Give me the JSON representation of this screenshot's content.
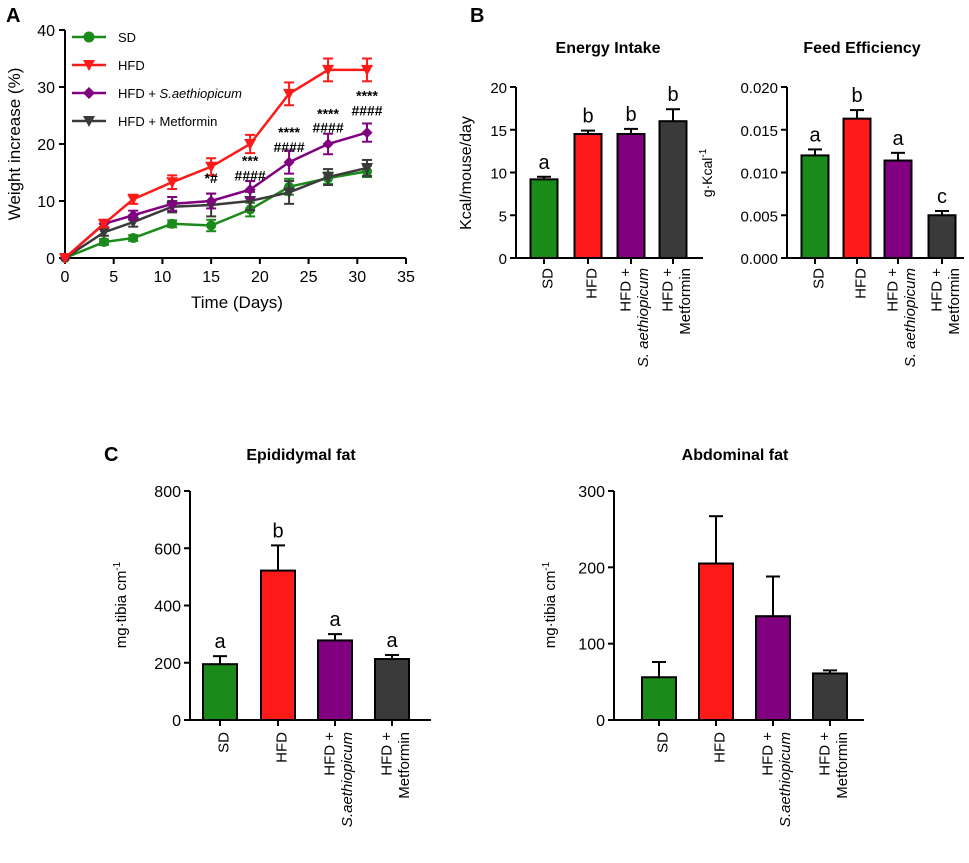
{
  "panels": {
    "A": {
      "letter": "A",
      "chart_data": {
        "type": "line",
        "xlabel": "Time (Days)",
        "ylabel": "Weight increase (%)",
        "xlim": [
          0,
          35
        ],
        "ylim": [
          0,
          40
        ],
        "xticks": [
          0,
          5,
          10,
          15,
          20,
          25,
          30,
          35
        ],
        "yticks": [
          0,
          10,
          20,
          30,
          40
        ],
        "x": [
          0,
          4,
          7,
          11,
          15,
          19,
          23,
          27,
          31
        ],
        "series": [
          {
            "key": "sd",
            "name": "SD",
            "color": "#1a8a1a",
            "marker": "circle",
            "values": [
              0,
              2.8,
              3.5,
              6.0,
              5.7,
              8.5,
              12.5,
              14.0,
              15.2
            ],
            "errors": [
              0,
              0.5,
              0.5,
              0.6,
              1.0,
              1.2,
              1.4,
              1.0,
              1.0
            ]
          },
          {
            "key": "hfd",
            "name": "HFD",
            "color": "#ff1a1a",
            "marker": "triangle-down",
            "values": [
              0,
              6.0,
              10.3,
              13.3,
              16.0,
              20.0,
              28.8,
              33.0,
              33.0
            ],
            "errors": [
              0,
              0.6,
              0.8,
              1.2,
              1.5,
              1.6,
              2.0,
              2.0,
              2.0
            ]
          },
          {
            "key": "sae",
            "name_prefix": "HFD + ",
            "name_italic": "S.aethiopicum",
            "color": "#800080",
            "marker": "diamond",
            "values": [
              0,
              6.0,
              7.5,
              9.5,
              10.0,
              12.0,
              16.8,
              20.0,
              22.0
            ],
            "errors": [
              0,
              0.6,
              0.8,
              1.2,
              1.3,
              1.5,
              2.0,
              1.8,
              1.6
            ]
          },
          {
            "key": "met",
            "name": "HFD + Metformin",
            "color": "#3a3a3a",
            "marker": "triangle-down",
            "values": [
              0,
              4.5,
              6.3,
              9.0,
              9.3,
              10.0,
              11.5,
              14.2,
              15.8
            ],
            "errors": [
              0,
              0.6,
              0.8,
              1.0,
              2.0,
              1.6,
              2.0,
              1.4,
              1.4
            ]
          }
        ],
        "annotations": [
          {
            "x": 15,
            "y": 13.2,
            "text": "*#"
          },
          {
            "x": 19,
            "y": 16.2,
            "text": "***"
          },
          {
            "x": 19,
            "y": 13.6,
            "text": "####"
          },
          {
            "x": 23,
            "y": 21.2,
            "text": "****"
          },
          {
            "x": 23,
            "y": 18.6,
            "text": "####"
          },
          {
            "x": 27,
            "y": 24.5,
            "text": "****"
          },
          {
            "x": 27,
            "y": 22.0,
            "text": "####"
          },
          {
            "x": 31,
            "y": 27.6,
            "text": "****"
          },
          {
            "x": 31,
            "y": 25.0,
            "text": "####"
          }
        ]
      }
    },
    "B": {
      "letter": "B",
      "charts": [
        {
          "key": "energy",
          "chart_data": {
            "type": "bar",
            "title": "Energy Intake",
            "ylabel": "Kcal/mouse/day",
            "ylim": [
              0,
              20
            ],
            "yticks": [
              "0",
              "5",
              "10",
              "15",
              "20"
            ],
            "categories": [
              "SD",
              "HFD",
              "HFD + S. aethiopicum",
              "HFD + Metformin"
            ],
            "values": [
              9.2,
              14.5,
              14.5,
              16.0
            ],
            "errors": [
              0.3,
              0.4,
              0.6,
              1.4
            ],
            "letters": [
              "a",
              "b",
              "b",
              "b"
            ]
          }
        },
        {
          "key": "feed",
          "chart_data": {
            "type": "bar",
            "title": "Feed Efficiency",
            "ylabel_main": "g·Kcal",
            "ylabel_sup": "-1",
            "ylim": [
              0,
              0.02
            ],
            "yticks": [
              "0.000",
              "0.005",
              "0.010",
              "0.015",
              "0.020"
            ],
            "categories": [
              "SD",
              "HFD",
              "HFD + S. aethiopicum",
              "HFD + Metformin"
            ],
            "values": [
              0.012,
              0.0163,
              0.0114,
              0.005
            ],
            "errors": [
              0.0007,
              0.001,
              0.0009,
              0.0005
            ],
            "letters": [
              "a",
              "b",
              "a",
              "c"
            ]
          }
        }
      ],
      "xlabels": {
        "sd": "SD",
        "hfd": "HFD",
        "sae_line1": "HFD +",
        "sae_line2": "S. aethiopicum",
        "met_line1": "HFD +",
        "met_line2": "Metformin"
      }
    },
    "C": {
      "letter": "C",
      "charts": [
        {
          "key": "epi",
          "chart_data": {
            "type": "bar",
            "title": "Epididymal fat",
            "ylabel_main": "mg·tibia cm",
            "ylabel_sup": "-1",
            "ylim": [
              0,
              800
            ],
            "yticks": [
              "0",
              "200",
              "400",
              "600",
              "800"
            ],
            "categories": [
              "SD",
              "HFD",
              "HFD + S.aethiopicum",
              "HFD + Metformin"
            ],
            "values": [
              195,
              522,
              278,
              213
            ],
            "errors": [
              28,
              88,
              22,
              14
            ],
            "letters": [
              "a",
              "b",
              "a",
              "a"
            ]
          }
        },
        {
          "key": "abd",
          "chart_data": {
            "type": "bar",
            "title": "Abdominal fat",
            "ylabel_main": "mg·tibia cm",
            "ylabel_sup": "-1",
            "ylim": [
              0,
              300
            ],
            "yticks": [
              "0",
              "100",
              "200",
              "300"
            ],
            "categories": [
              "SD",
              "HFD",
              "HFD + S.aethiopicum",
              "HFD + Metformin"
            ],
            "values": [
              56,
              205,
              136,
              61
            ],
            "errors": [
              20,
              62,
              52,
              4
            ],
            "letters": []
          }
        }
      ],
      "xlabels": {
        "sd": "SD",
        "hfd": "HFD",
        "sae_line1": "HFD +",
        "sae_line2": "S.aethiopicum",
        "met_line1": "HFD +",
        "met_line2": "Metformin"
      }
    }
  },
  "colors": {
    "sd": "#1a8a1a",
    "hfd": "#ff1a1a",
    "sae": "#800080",
    "met": "#3a3a3a"
  }
}
